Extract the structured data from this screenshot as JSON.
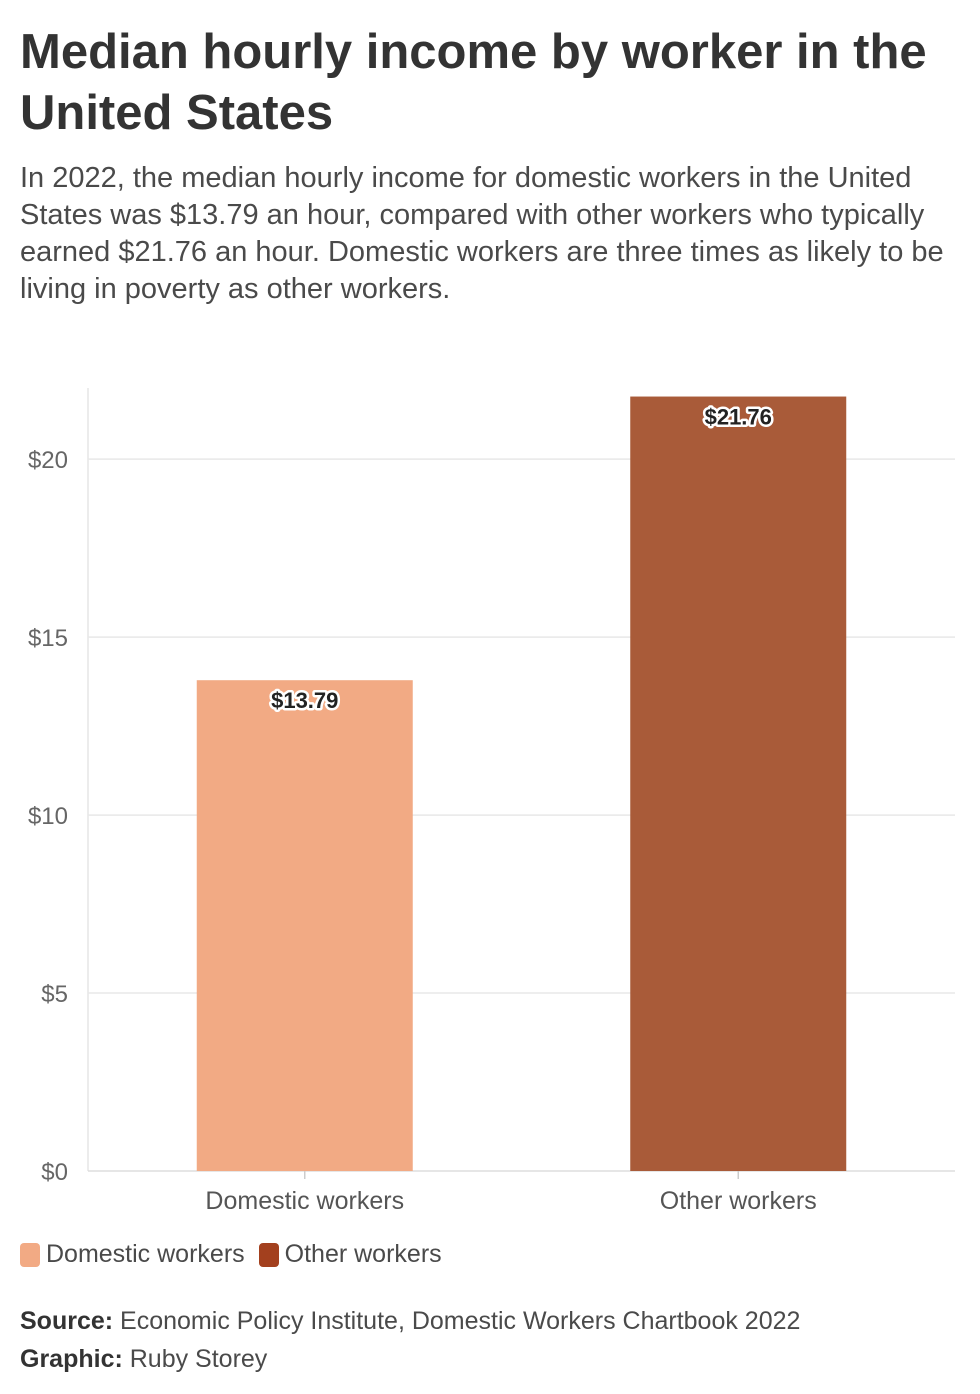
{
  "title": "Median hourly income by worker in the United States",
  "subtitle": "In 2022, the median hourly income for domestic workers in the United States was $13.79 an hour, compared with other workers who typically earned $21.76 an hour. Domestic workers are three times as likely to be living in poverty as other workers.",
  "chart_data": {
    "type": "bar",
    "categories": [
      "Domestic workers",
      "Other workers"
    ],
    "values": [
      13.79,
      21.76
    ],
    "data_labels": [
      "$13.79",
      "$21.76"
    ],
    "colors": [
      "#f2aa84",
      "#a95b39"
    ],
    "yticks": [
      0,
      5,
      10,
      15,
      20
    ],
    "ytick_labels": [
      "$0",
      "$5",
      "$10",
      "$15",
      "$20"
    ],
    "ylim": [
      0,
      22
    ],
    "grid": true,
    "legend_position": "bottom-left"
  },
  "legend": {
    "items": [
      {
        "label": "Domestic workers",
        "color": "#f2aa84"
      },
      {
        "label": "Other workers",
        "color": "#a3401e"
      }
    ]
  },
  "footer": {
    "source_label": "Source:",
    "source_text": "Economic Policy Institute, Domestic Workers Chartbook 2022",
    "graphic_label": "Graphic:",
    "graphic_text": "Ruby Storey"
  }
}
